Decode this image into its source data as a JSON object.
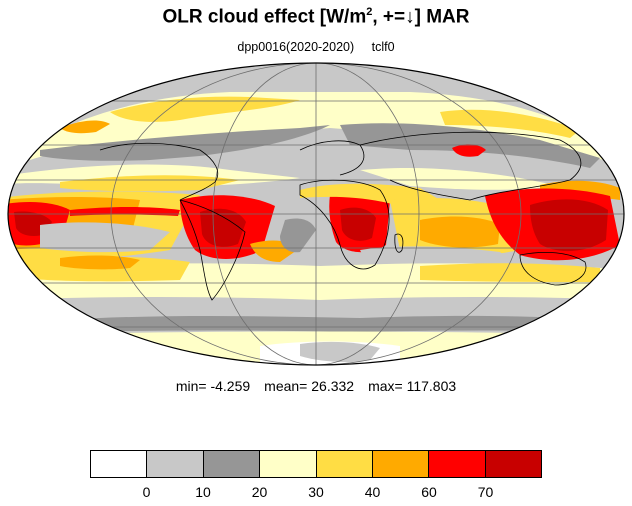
{
  "title": {
    "main": "OLR cloud effect [W/m",
    "sup": "2",
    "tail": ", +=↓]  MAR"
  },
  "subtitle": {
    "experiment": "dpp0016(2020-2020)",
    "variable": "tclf0"
  },
  "stats": {
    "min_label": "min=",
    "min": "-4.259",
    "mean_label": "mean=",
    "mean": "26.332",
    "max_label": "max=",
    "max": "117.803"
  },
  "colorbar": {
    "colors": [
      "#ffffff",
      "#c8c8c8",
      "#969696",
      "#ffffc8",
      "#ffdd44",
      "#ffaa00",
      "#ff0000",
      "#c80000"
    ],
    "tick_labels": [
      "0",
      "10",
      "20",
      "30",
      "40",
      "60",
      "70"
    ]
  },
  "map": {
    "projection": "mollweide",
    "ocean_color": "#c8c8c8",
    "outline_color": "#000000",
    "grid_color": "#6e6e6e"
  }
}
